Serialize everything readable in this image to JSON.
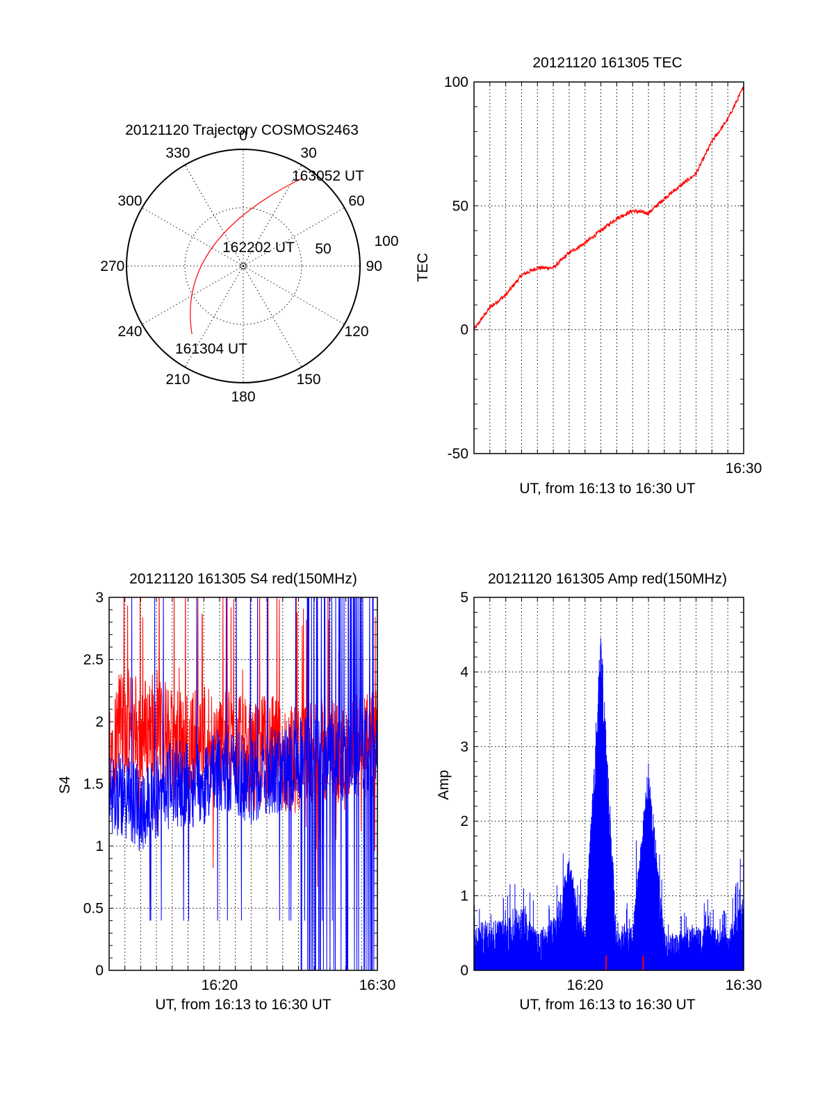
{
  "colors": {
    "red": "#ff0000",
    "blue": "#0000ff",
    "axis": "#000000"
  },
  "chart_data": [
    {
      "id": "polar",
      "type": "polar-trajectory",
      "title": "20121120 Trajectory COSMOS2463",
      "azimuth_labels": [
        {
          "az": 0,
          "label": "0"
        },
        {
          "az": 30,
          "label": "30"
        },
        {
          "az": 60,
          "label": "60"
        },
        {
          "az": 90,
          "label": "90"
        },
        {
          "az": 120,
          "label": "120"
        },
        {
          "az": 150,
          "label": "150"
        },
        {
          "az": 180,
          "label": "180"
        },
        {
          "az": 210,
          "label": "210"
        },
        {
          "az": 240,
          "label": "240"
        },
        {
          "az": 270,
          "label": "270"
        },
        {
          "az": 300,
          "label": "300"
        },
        {
          "az": 330,
          "label": "330"
        }
      ],
      "radial_labels": [
        {
          "r": 50,
          "label": "50"
        },
        {
          "r": 100,
          "label": "100"
        }
      ],
      "rlim": [
        0,
        100
      ],
      "track_start": {
        "az": 217,
        "zenith_dist": 73,
        "label": "161304 UT"
      },
      "track_mid": {
        "az": 300,
        "zenith_dist": 31,
        "label": "162202 UT"
      },
      "track_end": {
        "az": 34,
        "zenith_dist": 91,
        "label": "163052 UT"
      },
      "track_mid_label_at": {
        "az": 2,
        "zenith_dist": 4
      }
    },
    {
      "id": "tec",
      "type": "line",
      "title": "20121120 161305 TEC",
      "xlabel": "UT, from 16:13 to 16:30 UT",
      "ylabel": "TEC",
      "xlim": [
        "16:13",
        "16:30"
      ],
      "ylim": [
        -50,
        100
      ],
      "yticks": [
        -50,
        0,
        50,
        100
      ],
      "xtick_labels": [
        {
          "x": "16:30",
          "label": "16:30"
        }
      ],
      "series": [
        {
          "color": "#ff0000",
          "x": [
            "16:13",
            "16:14",
            "16:15",
            "16:16",
            "16:17",
            "16:18",
            "16:19",
            "16:20",
            "16:21",
            "16:22",
            "16:23",
            "16:24",
            "16:25",
            "16:26",
            "16:27",
            "16:28",
            "16:29",
            "16:30"
          ],
          "y": [
            0,
            9,
            14,
            22,
            25,
            25,
            31,
            35,
            40,
            45,
            48,
            47,
            53,
            58,
            63,
            76,
            85,
            98
          ]
        }
      ]
    },
    {
      "id": "s4",
      "type": "line",
      "title": "20121120 161305 S4 red(150MHz)",
      "xlabel": "UT, from 16:13 to 16:30 UT",
      "ylabel": "S4",
      "xlim": [
        "16:13",
        "16:30"
      ],
      "ylim": [
        0,
        3
      ],
      "yticks": [
        0,
        0.5,
        1,
        1.5,
        2,
        2.5,
        3
      ],
      "xtick_labels": [
        {
          "x": "16:20",
          "label": "16:20"
        },
        {
          "x": "16:30",
          "label": "16:30"
        }
      ],
      "series": [
        {
          "color": "#ff0000",
          "x": [
            "16:13",
            "16:14",
            "16:15",
            "16:16",
            "16:17",
            "16:18",
            "16:19",
            "16:20",
            "16:21",
            "16:22",
            "16:23",
            "16:24",
            "16:25",
            "16:26",
            "16:27",
            "16:28",
            "16:29",
            "16:30"
          ],
          "y": [
            1.8,
            2.0,
            1.9,
            2.0,
            1.8,
            1.8,
            1.9,
            1.8,
            1.8,
            1.7,
            1.8,
            1.7,
            1.7,
            1.7,
            1.8,
            1.7,
            1.8,
            1.8
          ]
        },
        {
          "color": "#0000ff",
          "x": [
            "16:13",
            "16:14",
            "16:15",
            "16:16",
            "16:17",
            "16:18",
            "16:19",
            "16:20",
            "16:21",
            "16:22",
            "16:23",
            "16:24",
            "16:25",
            "16:26",
            "16:27",
            "16:28",
            "16:29",
            "16:30"
          ],
          "y": [
            1.4,
            1.4,
            1.3,
            1.4,
            1.5,
            1.5,
            1.5,
            1.6,
            1.6,
            1.5,
            1.6,
            1.6,
            1.7,
            1.7,
            1.7,
            1.7,
            1.8,
            1.7
          ]
        }
      ]
    },
    {
      "id": "amp",
      "type": "line",
      "title": "20121120 161305 Amp red(150MHz)",
      "xlabel": "UT, from 16:13 to 16:30 UT",
      "ylabel": "Amp",
      "xlim": [
        "16:13",
        "16:30"
      ],
      "ylim": [
        0,
        5
      ],
      "yticks": [
        0,
        1,
        2,
        3,
        4,
        5
      ],
      "xtick_labels": [
        {
          "x": "16:20",
          "label": "16:20"
        },
        {
          "x": "16:30",
          "label": "16:30"
        }
      ],
      "series": [
        {
          "color": "#0000ff",
          "x": [
            "16:13",
            "16:14",
            "16:15",
            "16:16",
            "16:17",
            "16:18",
            "16:19",
            "16:20",
            "16:21",
            "16:22",
            "16:23",
            "16:24",
            "16:25",
            "16:26",
            "16:27",
            "16:28",
            "16:29",
            "16:30"
          ],
          "y": [
            0.6,
            0.7,
            0.7,
            0.9,
            0.5,
            0.7,
            1.5,
            0.5,
            4.6,
            0.5,
            0.6,
            2.8,
            0.5,
            0.5,
            0.6,
            0.6,
            0.5,
            1.1
          ]
        },
        {
          "color": "#ff0000",
          "x": [
            "16:21:20",
            "16:23:40"
          ],
          "y": [
            0.2,
            0.2
          ]
        }
      ]
    }
  ]
}
